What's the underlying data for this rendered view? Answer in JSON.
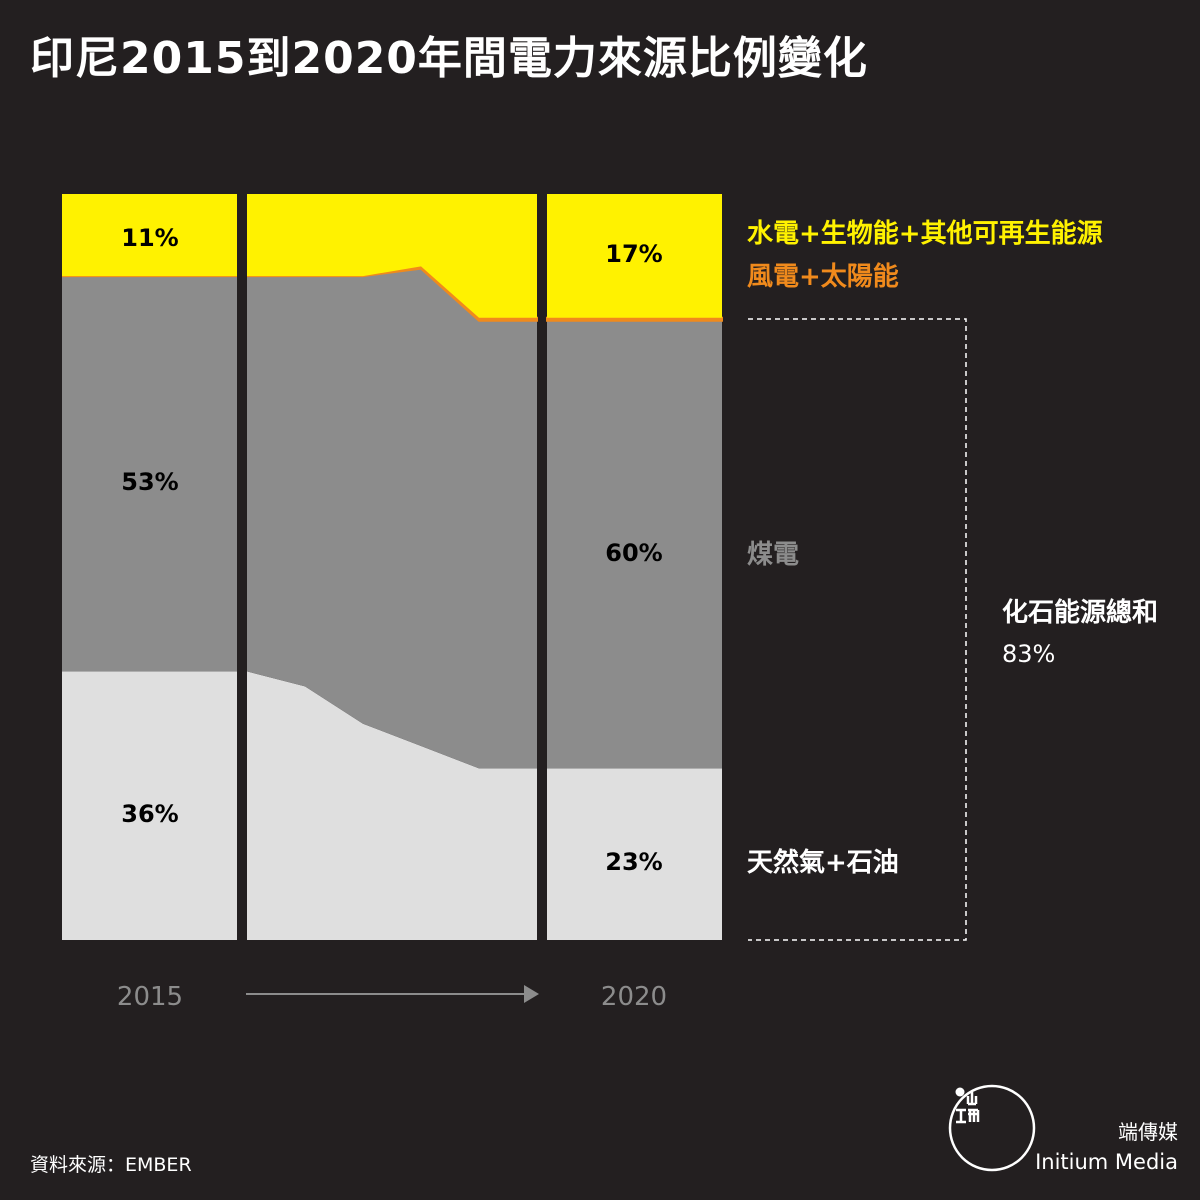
{
  "title": "印尼2015到2020年間電力來源比例變化",
  "source": "資料來源：EMBER",
  "brand": {
    "cn": "端傳媒",
    "en": "Initium Media"
  },
  "colors": {
    "renewable": "#fff200",
    "wind_solar": "#f08a1c",
    "coal": "#8c8c8c",
    "gas_oil": "#dfdfdf",
    "background": "#231f20"
  },
  "chart_data": {
    "type": "area",
    "x": [
      2015,
      2016,
      2017,
      2018,
      2019,
      2020
    ],
    "xlabel_ticks": [
      "2015",
      "2020"
    ],
    "ylim": [
      0,
      100
    ],
    "series": [
      {
        "key": "gas_oil",
        "name": "天然氣+石油",
        "values": [
          36,
          34,
          29,
          26,
          23,
          23
        ]
      },
      {
        "key": "coal",
        "name": "煤電",
        "values": [
          53,
          55,
          60,
          64,
          60,
          60
        ]
      },
      {
        "key": "wind_solar",
        "name": "風電+太陽能",
        "values": [
          0,
          0,
          0,
          0.3,
          0.4,
          0.4
        ]
      },
      {
        "key": "renewable",
        "name": "水電+生物能+其他可再生能源",
        "values": [
          11,
          11,
          11,
          9.7,
          16.6,
          16.6
        ]
      }
    ],
    "bar_labels": {
      "2015": {
        "renewable": "11%",
        "coal": "53%",
        "gas_oil": "36%"
      },
      "2020": {
        "renewable": "17%",
        "coal": "60%",
        "gas_oil": "23%"
      }
    },
    "bracket": {
      "label": "化石能源總和",
      "value": "83%"
    }
  }
}
